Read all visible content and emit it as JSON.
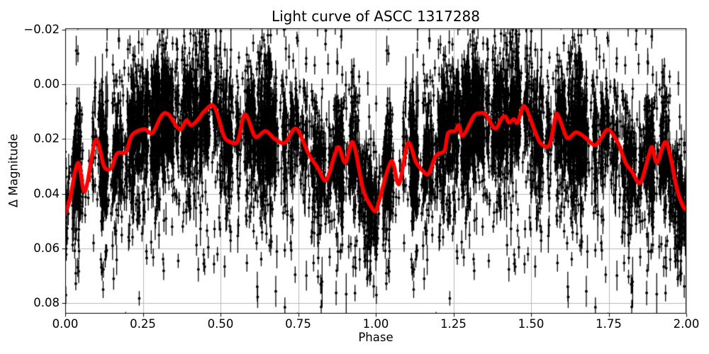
{
  "figure": {
    "background": "#ffffff"
  },
  "chart_data": {
    "type": "scatter",
    "title": "Light curve of ASCC 1317288",
    "xlabel": "Phase",
    "ylabel": "Δ Magnitude",
    "x_axis": {
      "min": 0,
      "max": 2,
      "ticks": [
        {
          "value": 0.0,
          "label": "0.00"
        },
        {
          "value": 0.25,
          "label": "0.25"
        },
        {
          "value": 0.5,
          "label": "0.50"
        },
        {
          "value": 0.75,
          "label": "0.75"
        },
        {
          "value": 1.0,
          "label": "1.00"
        },
        {
          "value": 1.25,
          "label": "1.25"
        },
        {
          "value": 1.5,
          "label": "1.50"
        },
        {
          "value": 1.75,
          "label": "1.75"
        },
        {
          "value": 2.0,
          "label": "2.00"
        }
      ]
    },
    "y_axis": {
      "min": -0.0205,
      "max": 0.0839,
      "inverted": true,
      "ticks": [
        {
          "value": -0.02,
          "label": "−0.02"
        },
        {
          "value": 0.0,
          "label": "0.00"
        },
        {
          "value": 0.02,
          "label": "0.02"
        },
        {
          "value": 0.04,
          "label": "0.04"
        },
        {
          "value": 0.06,
          "label": "0.06"
        },
        {
          "value": 0.08,
          "label": "0.08"
        }
      ]
    },
    "grid": {
      "show": true,
      "color": "#b0b0b0",
      "line_width": 0.9
    },
    "axes_color": "#000000",
    "series": [
      {
        "name": "smoothed light curve",
        "type": "line",
        "color": "#ff0000",
        "line_width": 5.5,
        "points": [
          [
            0.0,
            0.0473
          ],
          [
            0.015,
            0.042
          ],
          [
            0.041,
            0.0287
          ],
          [
            0.064,
            0.0391
          ],
          [
            0.098,
            0.0204
          ],
          [
            0.125,
            0.03
          ],
          [
            0.148,
            0.0307
          ],
          [
            0.167,
            0.0253
          ],
          [
            0.196,
            0.0248
          ],
          [
            0.212,
            0.0191
          ],
          [
            0.235,
            0.017
          ],
          [
            0.258,
            0.0165
          ],
          [
            0.281,
            0.0178
          ],
          [
            0.311,
            0.0113
          ],
          [
            0.333,
            0.0111
          ],
          [
            0.368,
            0.0165
          ],
          [
            0.39,
            0.0132
          ],
          [
            0.406,
            0.015
          ],
          [
            0.429,
            0.0127
          ],
          [
            0.447,
            0.01
          ],
          [
            0.479,
            0.008
          ],
          [
            0.509,
            0.0183
          ],
          [
            0.525,
            0.0207
          ],
          [
            0.555,
            0.0209
          ],
          [
            0.578,
            0.011
          ],
          [
            0.607,
            0.0183
          ],
          [
            0.619,
            0.0192
          ],
          [
            0.646,
            0.0171
          ],
          [
            0.676,
            0.0201
          ],
          [
            0.708,
            0.0213
          ],
          [
            0.744,
            0.0162
          ],
          [
            0.783,
            0.0253
          ],
          [
            0.813,
            0.0305
          ],
          [
            0.84,
            0.0351
          ],
          [
            0.867,
            0.0261
          ],
          [
            0.881,
            0.023
          ],
          [
            0.902,
            0.0286
          ],
          [
            0.927,
            0.0213
          ],
          [
            0.959,
            0.0383
          ],
          [
            0.985,
            0.0447
          ],
          [
            1.0,
            0.0463
          ],
          [
            1.012,
            0.0421
          ],
          [
            1.05,
            0.0281
          ],
          [
            1.075,
            0.0365
          ],
          [
            1.103,
            0.0215
          ],
          [
            1.13,
            0.0286
          ],
          [
            1.155,
            0.0321
          ],
          [
            1.171,
            0.0326
          ],
          [
            1.194,
            0.0261
          ],
          [
            1.221,
            0.0243
          ],
          [
            1.233,
            0.0178
          ],
          [
            1.256,
            0.0171
          ],
          [
            1.267,
            0.015
          ],
          [
            1.281,
            0.0188
          ],
          [
            1.315,
            0.0118
          ],
          [
            1.331,
            0.0106
          ],
          [
            1.354,
            0.0111
          ],
          [
            1.384,
            0.0162
          ],
          [
            1.406,
            0.0124
          ],
          [
            1.418,
            0.0118
          ],
          [
            1.429,
            0.014
          ],
          [
            1.445,
            0.0127
          ],
          [
            1.457,
            0.014
          ],
          [
            1.479,
            0.008
          ],
          [
            1.514,
            0.0176
          ],
          [
            1.532,
            0.0217
          ],
          [
            1.559,
            0.0222
          ],
          [
            1.578,
            0.0124
          ],
          [
            1.587,
            0.0113
          ],
          [
            1.61,
            0.0183
          ],
          [
            1.621,
            0.0197
          ],
          [
            1.644,
            0.0176
          ],
          [
            1.667,
            0.0188
          ],
          [
            1.696,
            0.0217
          ],
          [
            1.708,
            0.0222
          ],
          [
            1.726,
            0.0197
          ],
          [
            1.749,
            0.0166
          ],
          [
            1.781,
            0.0217
          ],
          [
            1.804,
            0.0286
          ],
          [
            1.826,
            0.0321
          ],
          [
            1.852,
            0.036
          ],
          [
            1.879,
            0.0261
          ],
          [
            1.89,
            0.023
          ],
          [
            1.906,
            0.0286
          ],
          [
            1.936,
            0.0213
          ],
          [
            1.97,
            0.0383
          ],
          [
            1.99,
            0.0447
          ],
          [
            2.0,
            0.0458
          ]
        ]
      },
      {
        "name": "observations with error bars",
        "type": "scatter_errorbar",
        "color": "#000000",
        "marker": "circle",
        "marker_radius": 2,
        "errorbar_line_width": 1.3,
        "scatter_model": {
          "comment": "thousands of noisy photometric points scattered about the smoothed curve, data duplicated over phase 0-1 and 1-2, clipped at axes",
          "n_clusters": 110,
          "pts_per_cluster_min": 15,
          "pts_per_cluster_max": 60,
          "cluster_x_sigma": 0.004,
          "n_background": 400,
          "noise_sigma_mix": [
            [
              0.62,
              0.0085
            ],
            [
              0.28,
              0.016
            ],
            [
              0.1,
              0.028
            ]
          ],
          "faint_outlier_rate": 0.04,
          "faint_outlier_max": 0.035,
          "errorbar_half_base": 0.0022,
          "errorbar_half_sigma": 0.0016,
          "errorbar_long_rate": 0.06,
          "errorbar_long_extra": 0.008
        }
      }
    ]
  }
}
